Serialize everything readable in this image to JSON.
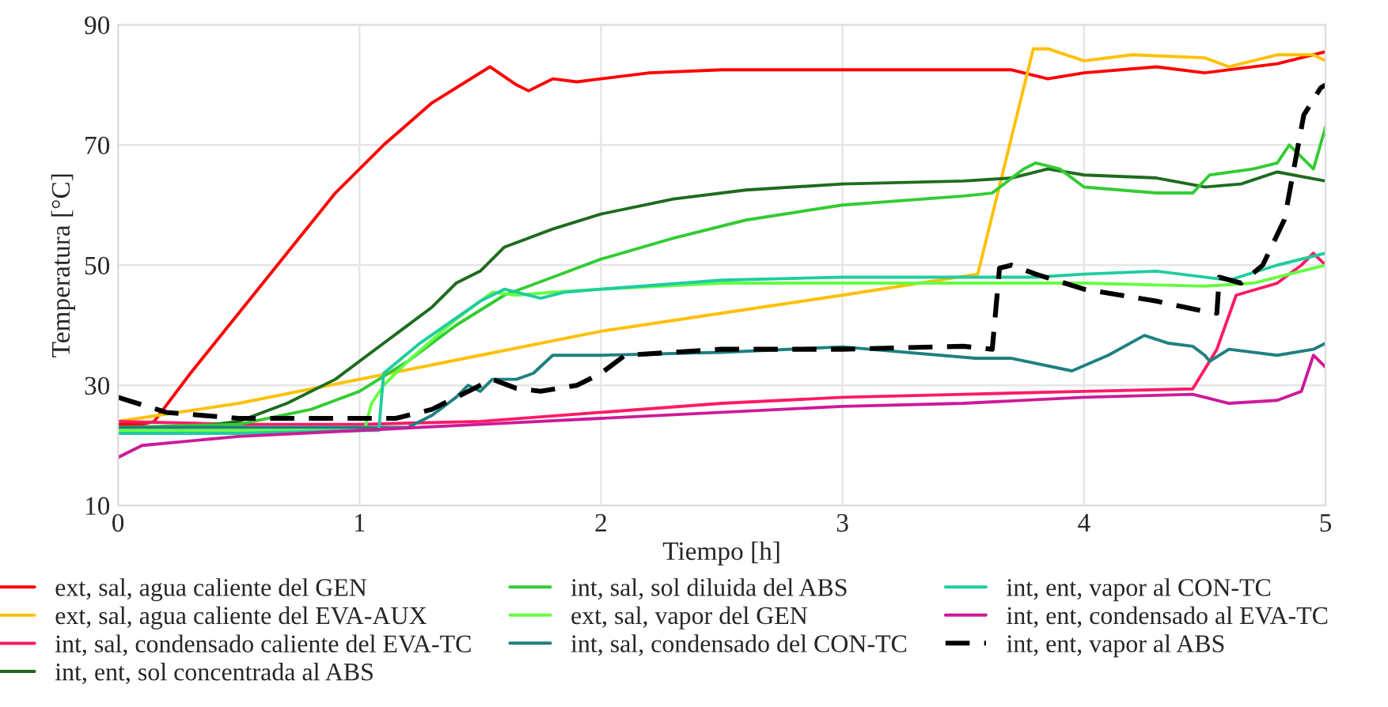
{
  "chart_data": {
    "type": "line",
    "xlabel": "Tiempo [h]",
    "ylabel": "Temperatura [°C]",
    "xlim": [
      0,
      5
    ],
    "ylim": [
      10,
      90
    ],
    "xticks": [
      0,
      1,
      2,
      3,
      4,
      5
    ],
    "yticks": [
      10,
      30,
      50,
      70,
      90
    ],
    "grid": true,
    "legend": "bottom",
    "marker": "none",
    "series": [
      {
        "name": "ext, sal, agua caliente del GEN",
        "color": "#ff0000",
        "line_style": "solid",
        "x": [
          0,
          0.1,
          0.15,
          0.3,
          0.5,
          0.7,
          0.9,
          1.1,
          1.3,
          1.54,
          1.65,
          1.7,
          1.8,
          1.9,
          2.0,
          2.2,
          2.5,
          3.0,
          3.5,
          3.7,
          3.85,
          4.0,
          4.3,
          4.5,
          4.8,
          5.0
        ],
        "values": [
          23.5,
          23.5,
          24,
          32,
          42,
          52,
          62,
          70,
          77,
          83,
          80,
          79,
          81,
          80.5,
          81,
          82,
          82.5,
          82.5,
          82.5,
          82.5,
          81,
          82,
          83,
          82,
          83.5,
          85.5
        ]
      },
      {
        "name": "ext, sal, agua caliente del EVA-AUX",
        "color": "#ffc000",
        "line_style": "solid",
        "x": [
          0,
          0.5,
          1.0,
          1.5,
          2.0,
          2.5,
          3.0,
          3.56,
          3.79,
          3.85,
          4.0,
          4.2,
          4.5,
          4.6,
          4.8,
          4.95,
          5.0
        ],
        "values": [
          24,
          27,
          31,
          35,
          39,
          42,
          45,
          48.5,
          86,
          86,
          84,
          85,
          84.5,
          83,
          85,
          85,
          84
        ]
      },
      {
        "name": "int, sal, condensado caliente del EVA-TC",
        "color": "#ff1a66",
        "line_style": "solid",
        "x": [
          0,
          0.5,
          1.0,
          1.5,
          2.0,
          2.5,
          3.0,
          3.5,
          4.0,
          4.45,
          4.55,
          4.63,
          4.8,
          4.9,
          4.95,
          5.0
        ],
        "values": [
          24,
          23.5,
          23.5,
          24,
          25.5,
          27,
          28,
          28.5,
          29,
          29.4,
          36,
          45,
          47,
          50,
          52,
          50
        ]
      },
      {
        "name": "int, ent, sol concentrada al ABS",
        "color": "#1e6b1e",
        "line_style": "solid",
        "x": [
          0,
          0.3,
          0.5,
          0.7,
          0.9,
          1.1,
          1.3,
          1.4,
          1.5,
          1.6,
          1.8,
          2.0,
          2.3,
          2.6,
          3.0,
          3.5,
          3.7,
          3.85,
          4.0,
          4.3,
          4.5,
          4.65,
          4.8,
          5.0
        ],
        "values": [
          23,
          23,
          24,
          27,
          31,
          37,
          43,
          47,
          49,
          53,
          56,
          58.5,
          61,
          62.5,
          63.5,
          64,
          64.5,
          66,
          65,
          64.5,
          63,
          63.5,
          65.5,
          64
        ]
      },
      {
        "name": "int, sal, sol diluida del ABS",
        "color": "#33cc33",
        "line_style": "solid",
        "x": [
          0,
          0.5,
          0.8,
          1.0,
          1.2,
          1.4,
          1.6,
          1.8,
          2.0,
          2.3,
          2.6,
          3.0,
          3.5,
          3.62,
          3.75,
          3.8,
          3.9,
          4.0,
          4.3,
          4.45,
          4.52,
          4.7,
          4.8,
          4.85,
          4.95,
          5.0
        ],
        "values": [
          23,
          23.5,
          26,
          29,
          34,
          40,
          45,
          48,
          51,
          54.5,
          57.5,
          60,
          61.5,
          62,
          66,
          67,
          66,
          63,
          62,
          62,
          65,
          66,
          67,
          70,
          66,
          73
        ]
      },
      {
        "name": "ext, sal, vapor del GEN",
        "color": "#66ff44",
        "line_style": "solid",
        "x": [
          0,
          0.5,
          1.02,
          1.05,
          1.1,
          1.2,
          1.4,
          1.55,
          1.65,
          1.8,
          2.0,
          2.5,
          3.0,
          3.5,
          4.0,
          4.5,
          4.7,
          5.0
        ],
        "values": [
          22.5,
          22.5,
          22.5,
          27,
          30,
          34,
          41,
          45.5,
          45,
          45.5,
          46,
          47,
          47,
          47,
          47,
          46.5,
          47,
          50
        ]
      },
      {
        "name": "int, sal, condensado del CON-TC",
        "color": "#1f8080",
        "line_style": "solid",
        "x": [
          0,
          0.5,
          1.0,
          1.2,
          1.3,
          1.4,
          1.45,
          1.5,
          1.55,
          1.65,
          1.72,
          1.8,
          2.0,
          2.5,
          3.0,
          3.55,
          3.7,
          3.95,
          4.1,
          4.25,
          4.35,
          4.45,
          4.5,
          4.52,
          4.6,
          4.8,
          4.95,
          5.0
        ],
        "values": [
          23,
          23,
          23,
          23,
          25,
          28,
          30,
          29,
          31,
          31,
          32,
          35,
          35,
          35.5,
          36.4,
          34.5,
          34.5,
          32.4,
          35,
          38.3,
          37,
          36.5,
          35,
          34,
          36,
          35,
          36,
          37
        ]
      },
      {
        "name": "int, ent, vapor al CON-TC",
        "color": "#20cca0",
        "line_style": "solid",
        "x": [
          0,
          0.5,
          1.0,
          1.08,
          1.1,
          1.25,
          1.5,
          1.6,
          1.75,
          1.85,
          2.0,
          2.5,
          3.0,
          3.5,
          3.8,
          4.0,
          4.3,
          4.6,
          4.8,
          5.0
        ],
        "values": [
          22,
          22,
          22.5,
          22.5,
          32,
          37,
          44,
          46,
          44.5,
          45.5,
          46,
          47.5,
          48,
          48,
          48,
          48.5,
          49,
          47.5,
          50,
          52
        ]
      },
      {
        "name": "int, ent, condensado al EVA-TC",
        "color": "#cc1a99",
        "line_style": "solid",
        "x": [
          0,
          0.1,
          0.5,
          1.0,
          1.5,
          2.0,
          2.5,
          3.0,
          3.5,
          4.0,
          4.45,
          4.6,
          4.8,
          4.9,
          4.95,
          5.0
        ],
        "values": [
          18,
          20,
          21.5,
          22.5,
          23.5,
          24.5,
          25.5,
          26.5,
          27,
          28,
          28.5,
          27,
          27.5,
          29,
          35,
          33
        ]
      },
      {
        "name": "int, ent, vapor al ABS",
        "color": "#000000",
        "line_style": "dashed",
        "x": [
          0,
          0.2,
          0.5,
          1.0,
          1.15,
          1.3,
          1.4,
          1.5,
          1.55,
          1.65,
          1.75,
          1.9,
          2.0,
          2.1,
          2.5,
          3.0,
          3.5,
          3.62,
          3.65,
          3.7,
          3.8,
          4.0,
          4.3,
          4.5,
          4.55,
          4.56,
          4.65,
          4.74,
          4.83,
          4.91,
          4.98,
          5.0
        ],
        "values": [
          28,
          25.5,
          24.5,
          24.5,
          24.5,
          26,
          28,
          30,
          31,
          29.5,
          29,
          30,
          32,
          35,
          36,
          36,
          36.5,
          36,
          49.5,
          50,
          48.5,
          46,
          44,
          42.3,
          42,
          48,
          47,
          50,
          57.6,
          75,
          79.5,
          80
        ]
      }
    ]
  }
}
